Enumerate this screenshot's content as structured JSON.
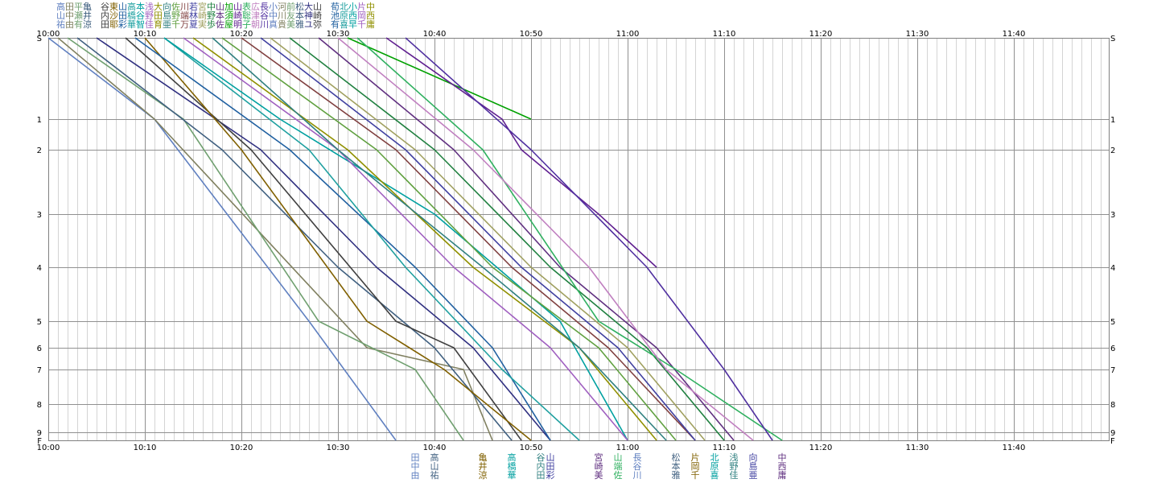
{
  "chart_data": {
    "type": "line",
    "title": "",
    "xlabel": "",
    "ylabel": "",
    "x_range": [
      "10:00",
      "11:49"
    ],
    "x_tick_labels": [
      "10:00",
      "10:10",
      "10:20",
      "10:30",
      "10:40",
      "10:50",
      "11:00",
      "11:10",
      "11:20",
      "11:30",
      "11:40"
    ],
    "y_tick_labels": [
      "S",
      "1",
      "2",
      "3",
      "4",
      "5",
      "6",
      "7",
      "8",
      "9",
      "F"
    ],
    "y_range": [
      "S",
      "F"
    ],
    "grid": true,
    "legend": "top-left",
    "top_legend_rows": [
      "高田平亀　谷東山高本浅大向佐川若宮中山加山表広長小河前松大山　荀北小片中",
      "山中瀬井　内沙田橋谷野田島野端林崎野本須崎聡津谷中川友本神崎　池原西岡西",
      "祐由有涼　田耶彩華智佳育亜千万夏実歩佐屋明子朝川真貴美雅ユ弥　有喜早千庸"
    ],
    "bottom_labels": [
      {
        "time": "10:38",
        "r1": "田",
        "r2": "中",
        "r3": "由"
      },
      {
        "time": "10:40",
        "r1": "高",
        "r2": "山",
        "r3": "祐"
      },
      {
        "time": "10:45",
        "r1": "亀",
        "r2": "井",
        "r3": "涼"
      },
      {
        "time": "10:48",
        "r1": "高",
        "r2": "橋",
        "r3": "華"
      },
      {
        "time": "10:51",
        "r1": "谷",
        "r2": "内",
        "r3": "田"
      },
      {
        "time": "10:52",
        "r1": "山",
        "r2": "田",
        "r3": "彩"
      },
      {
        "time": "10:57",
        "r1": "宮",
        "r2": "崎",
        "r3": "美"
      },
      {
        "time": "10:59",
        "r1": "山",
        "r2": "端",
        "r3": "佐"
      },
      {
        "time": "11:01",
        "r1": "長",
        "r2": "谷",
        "r3": "川"
      },
      {
        "time": "11:05",
        "r1": "松",
        "r2": "本",
        "r3": "雅"
      },
      {
        "time": "11:07",
        "r1": "片",
        "r2": "岡",
        "r3": "千"
      },
      {
        "time": "11:09",
        "r1": "北",
        "r2": "原",
        "r3": "喜"
      },
      {
        "time": "11:11",
        "r1": "浅",
        "r2": "野",
        "r3": "佳"
      },
      {
        "time": "11:13",
        "r1": "向",
        "r2": "島",
        "r3": "亜"
      },
      {
        "time": "11:16",
        "r1": "中",
        "r2": "西",
        "r3": "庸"
      }
    ],
    "series": [
      {
        "color": "#6080c0",
        "points": [
          [
            "10:00",
            "S"
          ],
          [
            "10:11",
            "1"
          ],
          [
            "10:27",
            "5"
          ],
          [
            "10:36",
            "F"
          ]
        ]
      },
      {
        "color": "#808060",
        "points": [
          [
            "10:01",
            "S"
          ],
          [
            "10:11",
            "1"
          ],
          [
            "10:33",
            "6"
          ],
          [
            "10:43",
            "7"
          ],
          [
            "10:46",
            "F"
          ]
        ]
      },
      {
        "color": "#70a070",
        "points": [
          [
            "10:02",
            "S"
          ],
          [
            "10:14",
            "1"
          ],
          [
            "10:28",
            "5"
          ],
          [
            "10:38",
            "7"
          ],
          [
            "10:43",
            "F"
          ]
        ]
      },
      {
        "color": "#406080",
        "points": [
          [
            "10:03",
            "S"
          ],
          [
            "10:18",
            "2"
          ],
          [
            "10:30",
            "4"
          ],
          [
            "10:40",
            "6"
          ],
          [
            "10:48",
            "F"
          ]
        ]
      },
      {
        "color": "#303080",
        "points": [
          [
            "10:05",
            "S"
          ],
          [
            "10:22",
            "2"
          ],
          [
            "10:34",
            "4"
          ],
          [
            "10:44",
            "6"
          ],
          [
            "10:52",
            "F"
          ]
        ]
      },
      {
        "color": "#404040",
        "points": [
          [
            "10:08",
            "S"
          ],
          [
            "10:21",
            "2"
          ],
          [
            "10:36",
            "5"
          ],
          [
            "10:42",
            "6"
          ],
          [
            "10:49",
            "F"
          ]
        ]
      },
      {
        "color": "#806000",
        "points": [
          [
            "10:10",
            "S"
          ],
          [
            "10:20",
            "2"
          ],
          [
            "10:33",
            "5"
          ],
          [
            "10:41",
            "7"
          ],
          [
            "10:50",
            "F"
          ]
        ]
      },
      {
        "color": "#2060a0",
        "points": [
          [
            "10:09",
            "S"
          ],
          [
            "10:25",
            "2"
          ],
          [
            "10:38",
            "4"
          ],
          [
            "10:46",
            "6"
          ],
          [
            "10:52",
            "F"
          ]
        ]
      },
      {
        "color": "#20a0a0",
        "points": [
          [
            "10:12",
            "S"
          ],
          [
            "10:27",
            "2"
          ],
          [
            "10:37",
            "4"
          ],
          [
            "10:47",
            "7"
          ],
          [
            "10:55",
            "F"
          ]
        ]
      },
      {
        "color": "#00a0a0",
        "points": [
          [
            "10:12",
            "S"
          ],
          [
            "10:24",
            "1"
          ],
          [
            "10:40",
            "3"
          ],
          [
            "10:53",
            "5"
          ],
          [
            "11:00",
            "F"
          ]
        ]
      },
      {
        "color": "#a060c0",
        "points": [
          [
            "10:14",
            "S"
          ],
          [
            "10:30",
            "2"
          ],
          [
            "10:42",
            "4"
          ],
          [
            "10:52",
            "6"
          ],
          [
            "11:00",
            "F"
          ]
        ]
      },
      {
        "color": "#909000",
        "points": [
          [
            "10:15",
            "S"
          ],
          [
            "10:31",
            "2"
          ],
          [
            "10:44",
            "4"
          ],
          [
            "10:55",
            "6"
          ],
          [
            "11:03",
            "F"
          ]
        ]
      },
      {
        "color": "#308080",
        "points": [
          [
            "10:17",
            "S"
          ],
          [
            "10:30",
            "2"
          ],
          [
            "10:45",
            "4"
          ],
          [
            "10:55",
            "6"
          ],
          [
            "11:04",
            "F"
          ]
        ]
      },
      {
        "color": "#60a040",
        "points": [
          [
            "10:18",
            "S"
          ],
          [
            "10:34",
            "2"
          ],
          [
            "10:46",
            "4"
          ],
          [
            "10:57",
            "6"
          ],
          [
            "11:05",
            "F"
          ]
        ]
      },
      {
        "color": "#804040",
        "points": [
          [
            "10:20",
            "S"
          ],
          [
            "10:36",
            "2"
          ],
          [
            "10:48",
            "4"
          ],
          [
            "10:58",
            "6"
          ],
          [
            "11:07",
            "F"
          ]
        ]
      },
      {
        "color": "#4040a0",
        "points": [
          [
            "10:22",
            "S"
          ],
          [
            "10:37",
            "2"
          ],
          [
            "10:49",
            "4"
          ],
          [
            "10:59",
            "6"
          ],
          [
            "11:07",
            "F"
          ]
        ]
      },
      {
        "color": "#a0a060",
        "points": [
          [
            "10:23",
            "S"
          ],
          [
            "10:38",
            "2"
          ],
          [
            "10:50",
            "4"
          ],
          [
            "11:00",
            "6"
          ],
          [
            "11:08",
            "F"
          ]
        ]
      },
      {
        "color": "#208040",
        "points": [
          [
            "10:25",
            "S"
          ],
          [
            "10:40",
            "2"
          ],
          [
            "10:52",
            "4"
          ],
          [
            "11:02",
            "6"
          ],
          [
            "11:10",
            "F"
          ]
        ]
      },
      {
        "color": "#603080",
        "points": [
          [
            "10:28",
            "S"
          ],
          [
            "10:42",
            "2"
          ],
          [
            "10:53",
            "4"
          ],
          [
            "11:03",
            "6"
          ],
          [
            "11:11",
            "F"
          ]
        ]
      },
      {
        "color": "#00a000",
        "points": [
          [
            "10:31",
            "S"
          ],
          [
            "10:50",
            "1"
          ]
        ]
      },
      {
        "color": "#602090",
        "points": [
          [
            "10:35",
            "S"
          ],
          [
            "10:47",
            "1"
          ],
          [
            "10:49",
            "2"
          ],
          [
            "10:57",
            "3"
          ],
          [
            "11:03",
            "4"
          ]
        ]
      },
      {
        "color": "#30b060",
        "points": [
          [
            "10:32",
            "S"
          ],
          [
            "10:45",
            "2"
          ],
          [
            "10:57",
            "5"
          ],
          [
            "11:05",
            "7"
          ],
          [
            "11:16",
            "F"
          ]
        ]
      },
      {
        "color": "#c080c0",
        "points": [
          [
            "10:30",
            "S"
          ],
          [
            "10:44",
            "2"
          ],
          [
            "10:56",
            "4"
          ],
          [
            "11:04",
            "7"
          ],
          [
            "11:13",
            "F"
          ]
        ]
      },
      {
        "color": "#5030a0",
        "points": [
          [
            "10:37",
            "S"
          ],
          [
            "10:50",
            "2"
          ],
          [
            "11:02",
            "4"
          ],
          [
            "11:10",
            "7"
          ],
          [
            "11:15",
            "F"
          ]
        ]
      }
    ]
  }
}
